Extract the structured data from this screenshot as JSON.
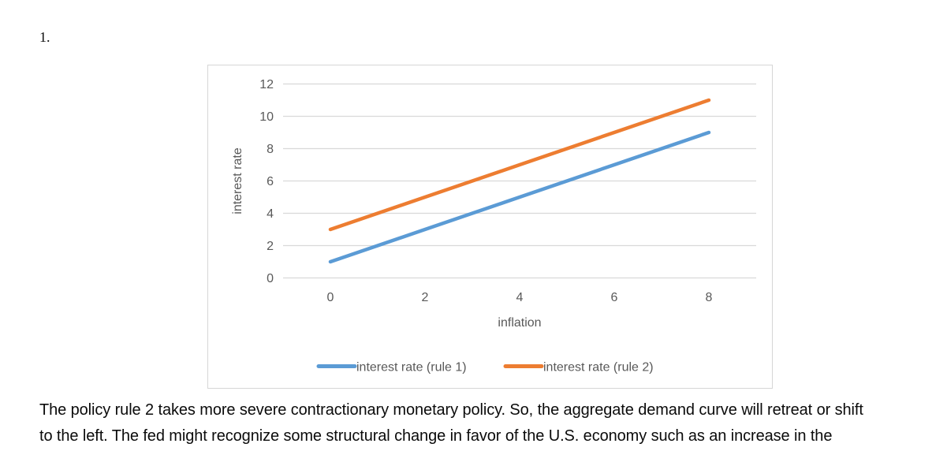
{
  "page": {
    "item_number": "1."
  },
  "chart_data": {
    "type": "line",
    "x": [
      0,
      2,
      4,
      6,
      8
    ],
    "series": [
      {
        "name": "interest rate (rule 1)",
        "values": [
          1,
          3,
          5,
          7,
          9
        ],
        "color": "#5B9BD5"
      },
      {
        "name": "interest rate (rule 2)",
        "values": [
          3,
          5,
          7,
          9,
          11
        ],
        "color": "#ED7D31"
      }
    ],
    "xlabel": "inflation",
    "ylabel": "interest rate",
    "ylim": [
      0,
      12
    ],
    "ytick_step": 2,
    "grid": true,
    "legend_position": "bottom",
    "colors": {
      "gridline": "#D9D9D9",
      "axis_text": "#595959",
      "frame_border": "#D6D6D6",
      "background": "#FFFFFF"
    }
  },
  "paragraph": {
    "lines": [
      "The policy rule 2 takes more severe contractionary monetary policy. So, the aggregate demand curve will retreat or shift",
      "to the left. The fed might recognize some structural change in favor of the U.S. economy such as an increase in the"
    ]
  }
}
